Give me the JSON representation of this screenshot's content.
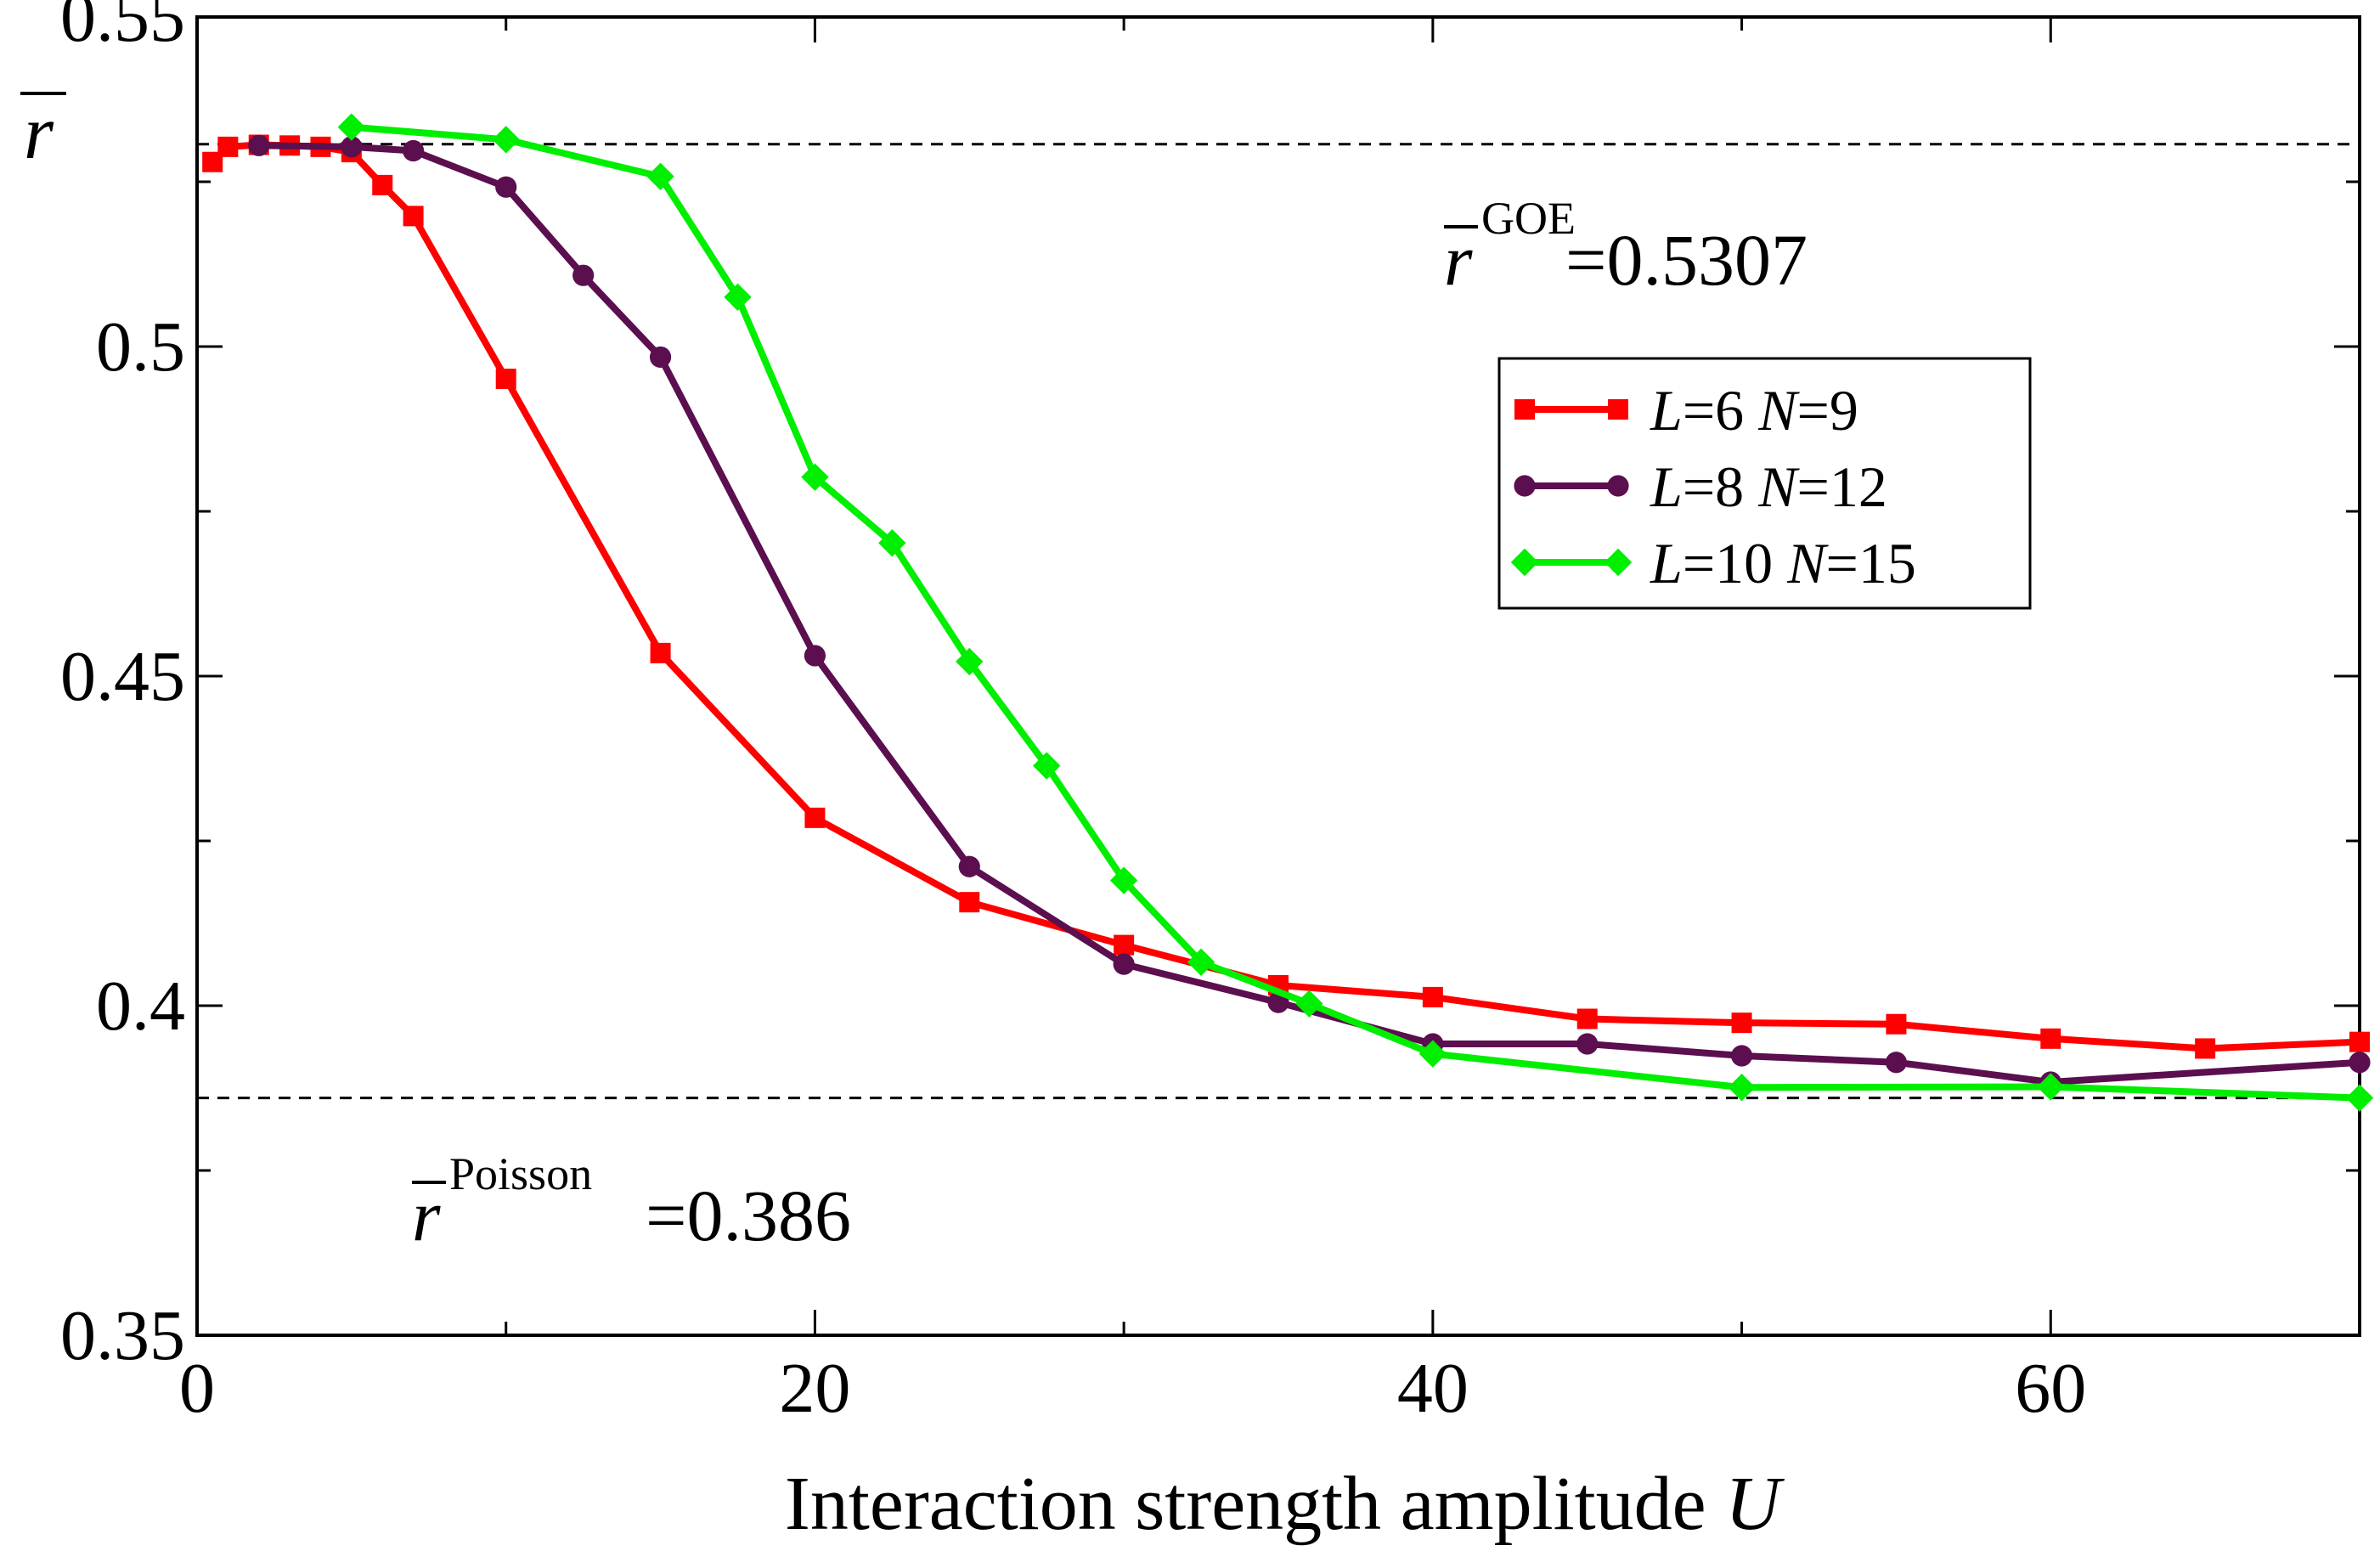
{
  "chart_data": {
    "type": "line",
    "xlabel": "Interaction strength amplitude ",
    "xlabel_var": "U",
    "ylabel": "r",
    "xlim": [
      0,
      70
    ],
    "ylim": [
      0.35,
      0.55
    ],
    "x_ticks": [
      {
        "value": 0,
        "label": "0"
      },
      {
        "value": 20,
        "label": "20"
      },
      {
        "value": 40,
        "label": "40"
      },
      {
        "value": 60,
        "label": "60"
      }
    ],
    "x_minor_ticks": [
      10,
      30,
      50,
      70
    ],
    "y_ticks": [
      {
        "value": 0.35,
        "label": "0.35"
      },
      {
        "value": 0.4,
        "label": "0.4"
      },
      {
        "value": 0.45,
        "label": "0.45"
      },
      {
        "value": 0.5,
        "label": "0.5"
      },
      {
        "value": 0.55,
        "label": "0.55"
      }
    ],
    "y_minor_ticks": [
      0.375,
      0.425,
      0.475,
      0.525
    ],
    "reference_lines": [
      {
        "name": "goe",
        "y": 0.5307,
        "base": "r",
        "sup": "GOE",
        "text": "=0.5307",
        "style": "dashed"
      },
      {
        "name": "poisson",
        "y": 0.386,
        "base": "r",
        "sup": "Poisson",
        "text": "=0.386",
        "style": "dashed"
      }
    ],
    "series": [
      {
        "name": "L6N9",
        "label_parts": [
          "L",
          "=6 ",
          "N",
          "=9"
        ],
        "color": "#ff0000",
        "marker": "square",
        "x": [
          0.5,
          1,
          2,
          3,
          4,
          5,
          6,
          7,
          10,
          15,
          20,
          25,
          30,
          35,
          40,
          45,
          50,
          55,
          60,
          65,
          70
        ],
        "y": [
          0.528,
          0.5303,
          0.5306,
          0.5305,
          0.5303,
          0.5295,
          0.5245,
          0.5198,
          0.4951,
          0.4535,
          0.4285,
          0.4157,
          0.4092,
          0.4031,
          0.4013,
          0.398,
          0.3974,
          0.3972,
          0.395,
          0.3935,
          0.3945
        ]
      },
      {
        "name": "L8N12",
        "label_parts": [
          "L",
          "=8 ",
          "N",
          "=12"
        ],
        "color": "#5b0f4f",
        "marker": "circle",
        "x": [
          2,
          5,
          7,
          10,
          12.5,
          15,
          20,
          25,
          30,
          35,
          40,
          45,
          50,
          55,
          60,
          70
        ],
        "y": [
          0.5305,
          0.5303,
          0.5297,
          0.5242,
          0.5108,
          0.4984,
          0.4531,
          0.4211,
          0.4063,
          0.4005,
          0.3942,
          0.3942,
          0.3924,
          0.3914,
          0.3884,
          0.3914
        ]
      },
      {
        "name": "L10N15",
        "label_parts": [
          "L",
          "=10 ",
          "N",
          "=15"
        ],
        "color": "#00ee00",
        "marker": "diamond",
        "x": [
          5,
          10,
          15,
          17.5,
          20,
          22.5,
          25,
          27.5,
          30,
          32.5,
          36,
          40,
          50,
          60,
          70
        ],
        "y": [
          0.5333,
          0.5314,
          0.5258,
          0.5075,
          0.4802,
          0.4702,
          0.4522,
          0.4364,
          0.419,
          0.4066,
          0.4003,
          0.3927,
          0.3876,
          0.3877,
          0.386
        ]
      }
    ],
    "legend_position": "upper-right"
  }
}
